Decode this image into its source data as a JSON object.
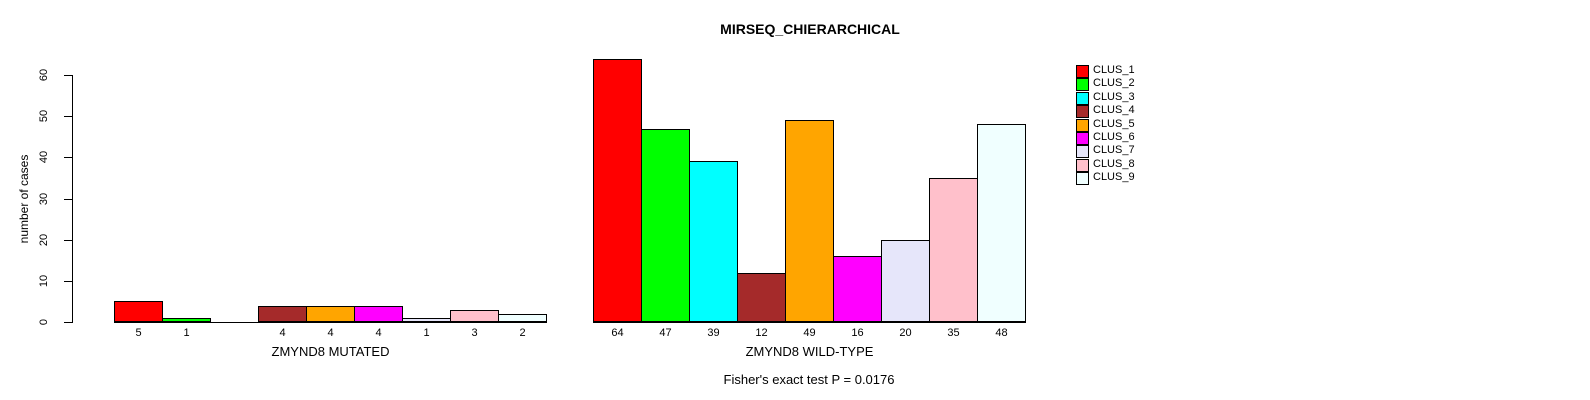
{
  "title": "MIRSEQ_CHIERARCHICAL",
  "chart_data": {
    "type": "bar",
    "title": "MIRSEQ_CHIERARCHICAL",
    "xlabel": "",
    "ylabel": "number of cases",
    "ylim": [
      0,
      64
    ],
    "yticks": [
      0,
      10,
      20,
      30,
      40,
      50,
      60
    ],
    "grid": "off",
    "legend_position": "right-top",
    "annotation": "Fisher's exact test P = 0.0176",
    "series": [
      {
        "name": "CLUS_1",
        "color": "#FF0000"
      },
      {
        "name": "CLUS_2",
        "color": "#00FF00"
      },
      {
        "name": "CLUS_3",
        "color": "#00FFFF"
      },
      {
        "name": "CLUS_4",
        "color": "#A52A2A"
      },
      {
        "name": "CLUS_5",
        "color": "#FFA500"
      },
      {
        "name": "CLUS_6",
        "color": "#FF00FF"
      },
      {
        "name": "CLUS_7",
        "color": "#E6E6FA"
      },
      {
        "name": "CLUS_8",
        "color": "#FFC0CB"
      },
      {
        "name": "CLUS_9",
        "color": "#F0FFFF"
      }
    ],
    "groups": [
      {
        "label": "ZMYND8 MUTATED",
        "values": [
          5,
          1,
          0,
          4,
          4,
          4,
          1,
          3,
          2
        ],
        "bar_labels": [
          "5",
          "1",
          "",
          "4",
          "4",
          "4",
          "1",
          "3",
          "2"
        ]
      },
      {
        "label": "ZMYND8 WILD-TYPE",
        "values": [
          64,
          47,
          39,
          12,
          49,
          16,
          20,
          35,
          48
        ],
        "bar_labels": [
          "64",
          "47",
          "39",
          "12",
          "49",
          "16",
          "20",
          "35",
          "48"
        ]
      }
    ]
  }
}
